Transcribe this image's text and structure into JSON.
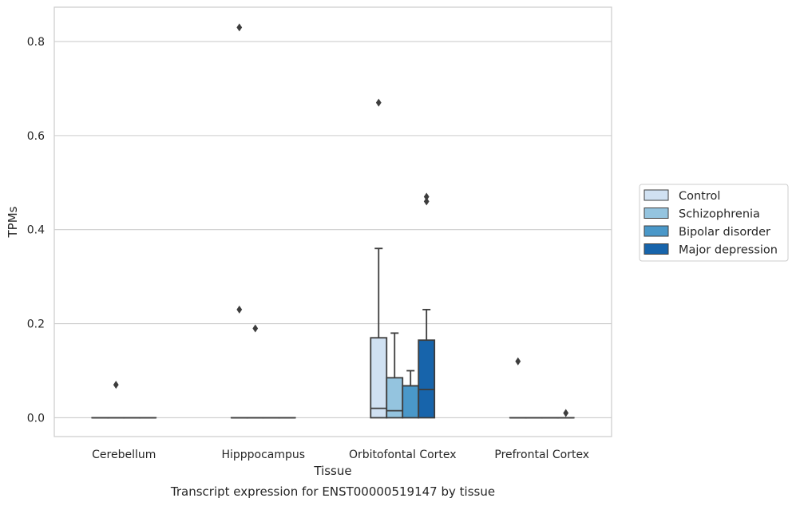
{
  "chart_data": {
    "type": "box",
    "xlabel": "Tissue",
    "ylabel": "TPMs",
    "caption": "Transcript expression for ENST00000519147 by tissue",
    "categories": [
      "Cerebellum",
      "Hipppocampus",
      "Orbitofontal Cortex",
      "Prefrontal Cortex"
    ],
    "ylim": [
      -0.04,
      0.873
    ],
    "yticks": [
      0.0,
      0.2,
      0.4,
      0.6,
      0.8
    ],
    "ytick_labels": [
      "0.0",
      "0.2",
      "0.4",
      "0.6",
      "0.8"
    ],
    "grid": true,
    "legend_position": "right",
    "series": [
      {
        "name": "Control",
        "color": "#d0e1f2",
        "boxes": [
          {
            "whislo": 0,
            "q1": 0,
            "median": 0,
            "q3": 0,
            "whishi": 0,
            "fliers": []
          },
          {
            "whislo": 0,
            "q1": 0,
            "median": 0,
            "q3": 0,
            "whishi": 0,
            "fliers": [
              0.83,
              0.23
            ]
          },
          {
            "whislo": 0,
            "q1": 0,
            "median": 0.02,
            "q3": 0.17,
            "whishi": 0.36,
            "fliers": [
              0.67
            ]
          },
          {
            "whislo": 0,
            "q1": 0,
            "median": 0,
            "q3": 0,
            "whishi": 0,
            "fliers": [
              0.12
            ]
          }
        ]
      },
      {
        "name": "Schizophrenia",
        "color": "#94c4df",
        "boxes": [
          {
            "whislo": 0,
            "q1": 0,
            "median": 0,
            "q3": 0,
            "whishi": 0,
            "fliers": [
              0.07
            ]
          },
          {
            "whislo": 0,
            "q1": 0,
            "median": 0,
            "q3": 0,
            "whishi": 0,
            "fliers": [
              0.19
            ]
          },
          {
            "whislo": 0,
            "q1": 0,
            "median": 0.015,
            "q3": 0.085,
            "whishi": 0.18,
            "fliers": []
          },
          {
            "whislo": 0,
            "q1": 0,
            "median": 0,
            "q3": 0,
            "whishi": 0,
            "fliers": []
          }
        ]
      },
      {
        "name": "Bipolar disorder",
        "color": "#4a98c9",
        "boxes": [
          {
            "whislo": 0,
            "q1": 0,
            "median": 0,
            "q3": 0,
            "whishi": 0,
            "fliers": []
          },
          {
            "whislo": 0,
            "q1": 0,
            "median": 0,
            "q3": 0,
            "whishi": 0,
            "fliers": []
          },
          {
            "whislo": 0,
            "q1": 0,
            "median": 0.068,
            "q3": 0.068,
            "whishi": 0.1,
            "fliers": []
          },
          {
            "whislo": 0,
            "q1": 0,
            "median": 0,
            "q3": 0,
            "whishi": 0,
            "fliers": []
          }
        ]
      },
      {
        "name": "Major depression",
        "color": "#1764ab",
        "boxes": [
          {
            "whislo": 0,
            "q1": 0,
            "median": 0,
            "q3": 0,
            "whishi": 0,
            "fliers": []
          },
          {
            "whislo": 0,
            "q1": 0,
            "median": 0,
            "q3": 0,
            "whishi": 0,
            "fliers": []
          },
          {
            "whislo": 0,
            "q1": 0,
            "median": 0.06,
            "q3": 0.165,
            "whishi": 0.23,
            "fliers": [
              0.47,
              0.46
            ]
          },
          {
            "whislo": 0,
            "q1": 0,
            "median": 0,
            "q3": 0,
            "whishi": 0,
            "fliers": [
              0.01
            ]
          }
        ]
      }
    ]
  }
}
